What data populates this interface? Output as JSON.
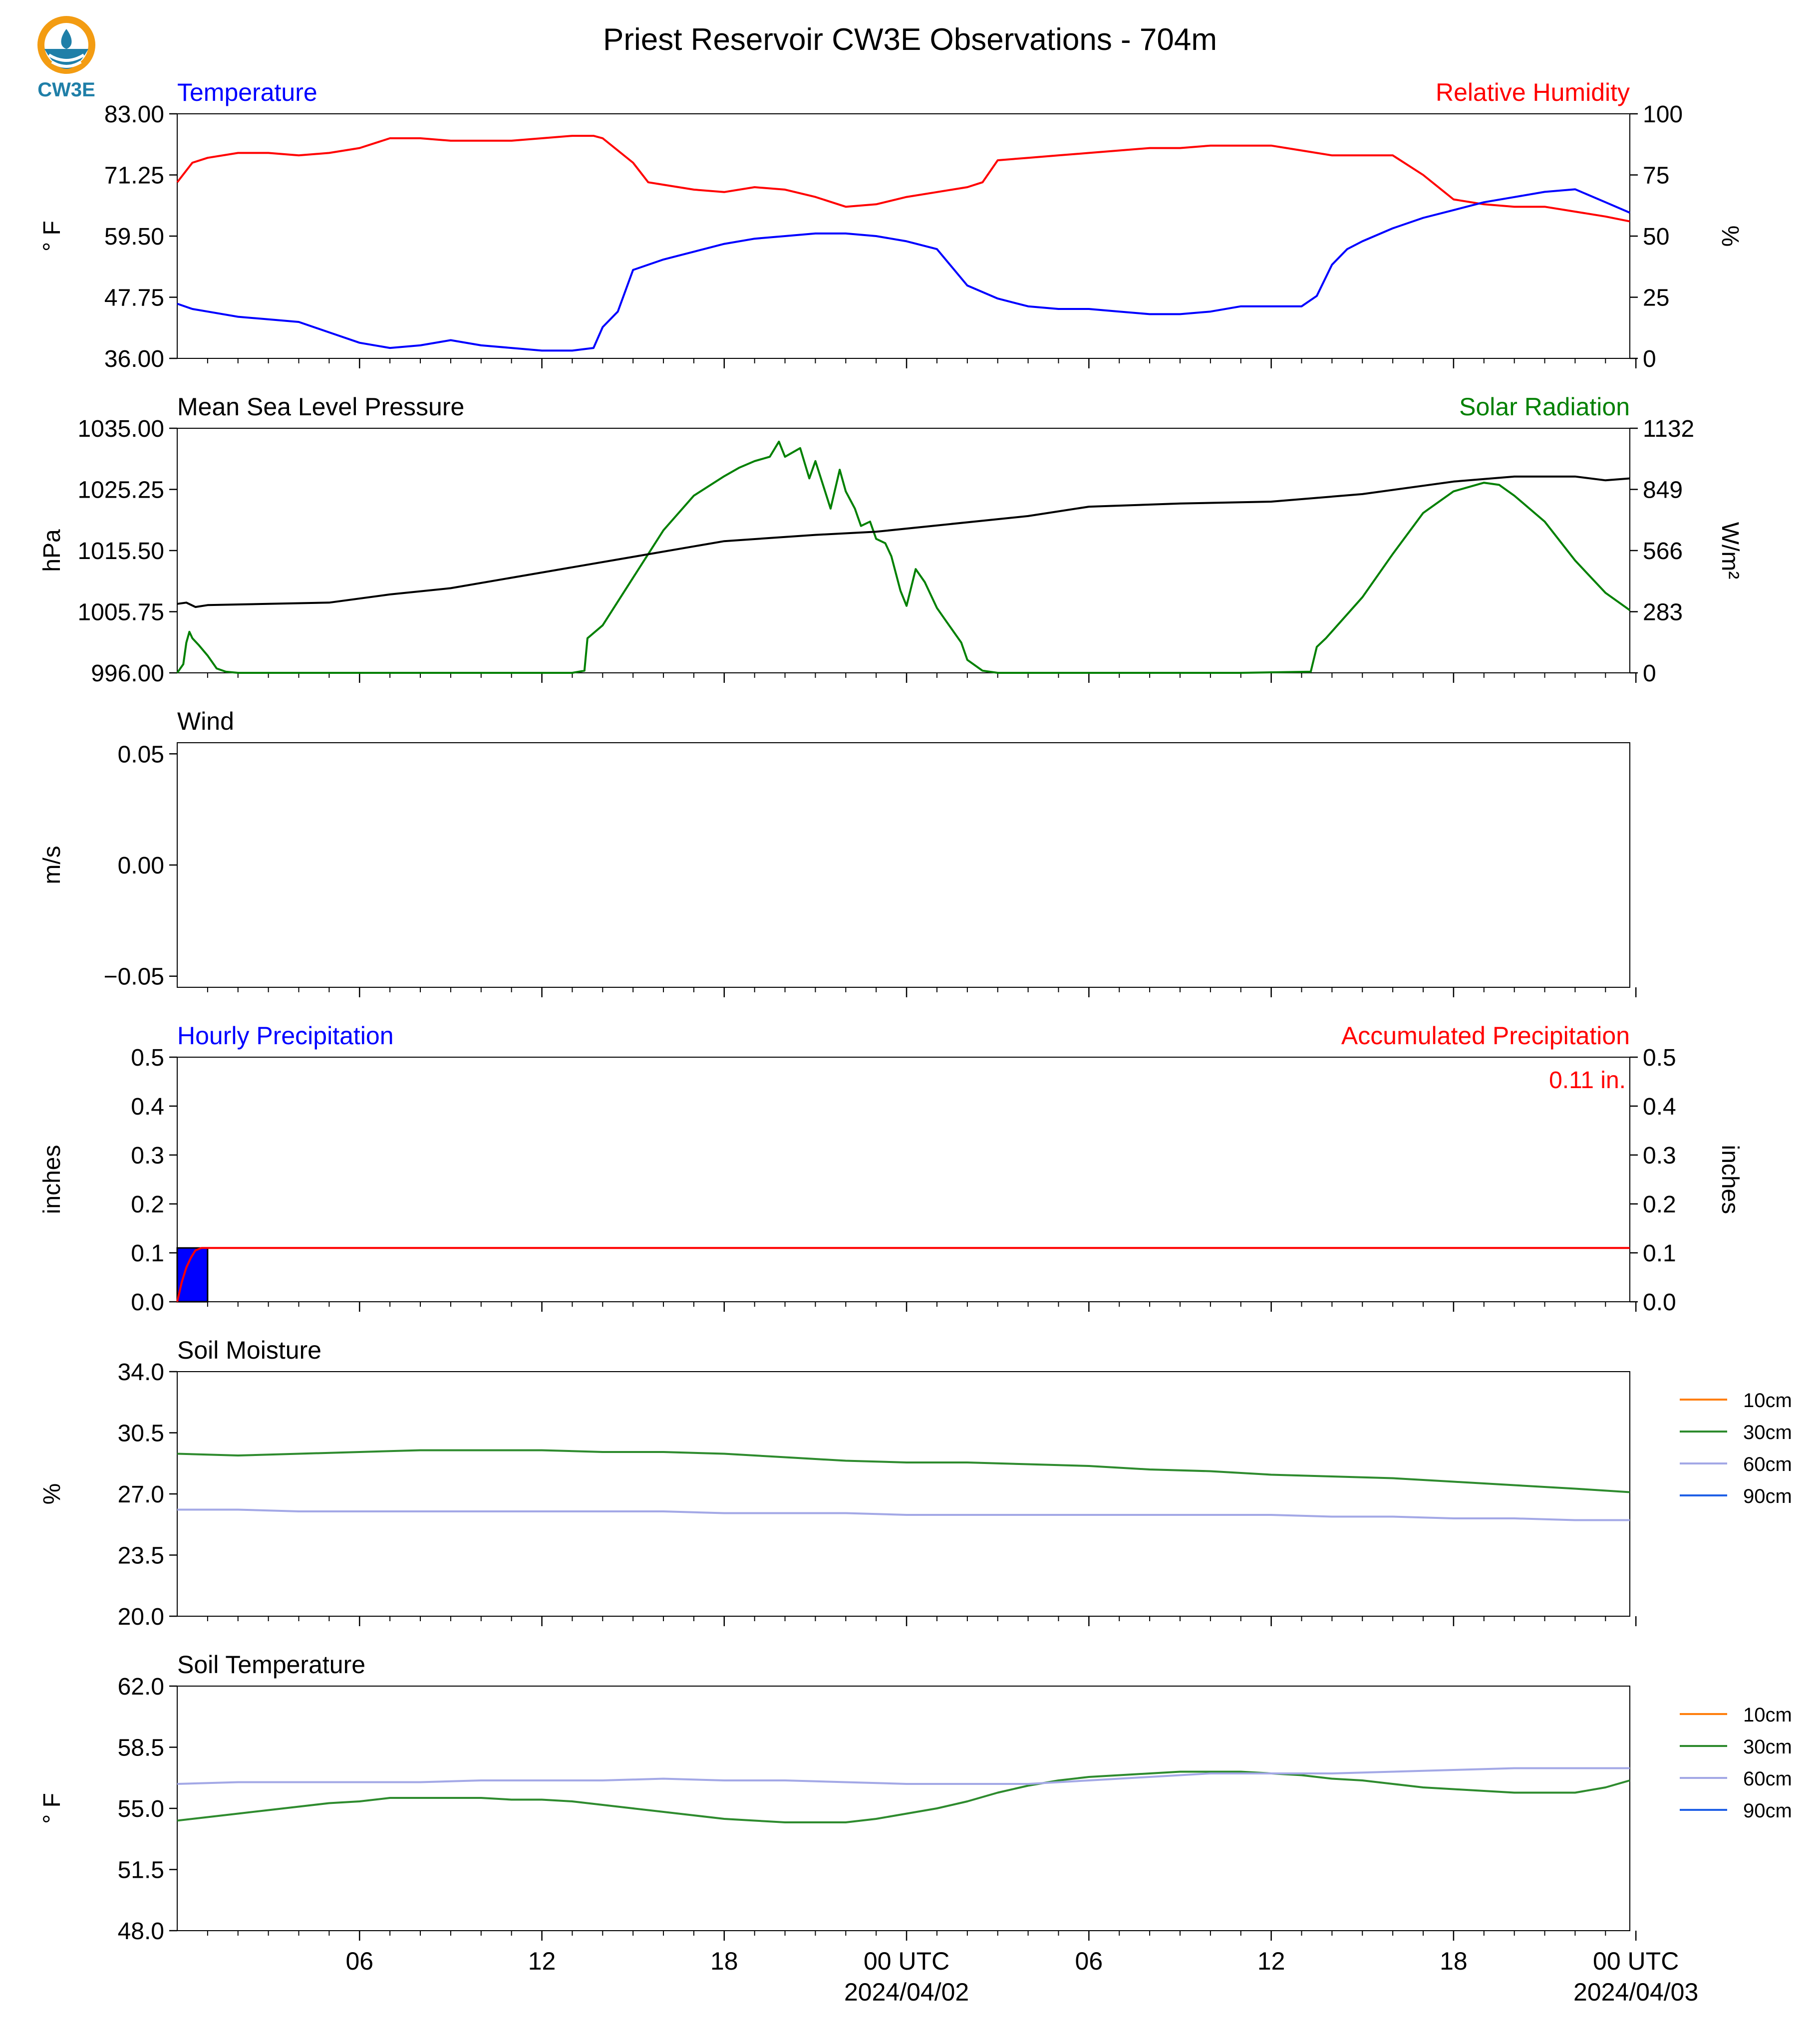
{
  "title": "Priest Reservoir CW3E Observations - 704m",
  "logo_text": "CW3E",
  "colors": {
    "temp": "#0000ff",
    "rh": "#ff0000",
    "pressure": "#000000",
    "solar": "#008000",
    "hourly": "#0000ff",
    "accum": "#ff0000",
    "10cm": "#ff7f0e",
    "30cm": "#2e8b2e",
    "60cm": "#a3a8e6",
    "90cm": "#1f5fe6"
  },
  "x_axis": {
    "unit": "hours since 2024-04-01 00 UTC",
    "range": [
      0,
      47.8
    ],
    "major_ticks": [
      6,
      12,
      18,
      24,
      30,
      36,
      42,
      48
    ],
    "tick_labels": [
      "06",
      "12",
      "18",
      "00 UTC",
      "06",
      "12",
      "18",
      "00 UTC"
    ],
    "date_labels": [
      {
        "at": 24,
        "text": "2024/04/02"
      },
      {
        "at": 48,
        "text": "2024/04/03"
      }
    ],
    "minor_ticks": [
      1,
      2,
      3,
      4,
      5,
      7,
      8,
      9,
      10,
      11,
      13,
      14,
      15,
      16,
      17,
      19,
      20,
      21,
      22,
      23,
      25,
      26,
      27,
      28,
      29,
      31,
      32,
      33,
      34,
      35,
      37,
      38,
      39,
      40,
      41,
      43,
      44,
      45,
      46,
      47
    ]
  },
  "labels": {
    "temp": "Temperature",
    "rh": "Relative Humidity",
    "temp_unit": "° F",
    "rh_unit": "%",
    "pressure": "Mean Sea Level Pressure",
    "solar": "Solar Radiation",
    "pressure_unit": "hPa",
    "solar_unit": "W/m²",
    "wind": "Wind",
    "wind_unit": "m/s",
    "hourly": "Hourly Precipitation",
    "accum": "Accumulated Precipitation",
    "precip_unit": "inches",
    "accum_total": "0.11 in.",
    "soil_moisture": "Soil Moisture",
    "sm_unit": "%",
    "soil_temp": "Soil Temperature",
    "st_unit": "° F",
    "legend": [
      "10cm",
      "30cm",
      "60cm",
      "90cm"
    ]
  },
  "chart_data": [
    {
      "type": "line",
      "title": "Temperature",
      "ylabel": "° F",
      "ylim": [
        36,
        83
      ],
      "yticks": [
        "36.00",
        "47.75",
        "59.50",
        "71.25",
        "83.00"
      ],
      "x": [
        0,
        0.5,
        1,
        2,
        3,
        4,
        5,
        6,
        7,
        8,
        9,
        10,
        11,
        12,
        13,
        13.7,
        14,
        14.5,
        15,
        16,
        17,
        18,
        19,
        20,
        21,
        22,
        23,
        24,
        25,
        26,
        27,
        28,
        29,
        30,
        31,
        32,
        33,
        34,
        35,
        36,
        37,
        37.5,
        38,
        38.5,
        39,
        40,
        41,
        42,
        43,
        44,
        45,
        46,
        47,
        47.8
      ],
      "y": [
        46.5,
        45.5,
        45,
        44,
        43.5,
        43,
        41,
        39,
        38,
        38.5,
        39.5,
        38.5,
        38,
        37.5,
        37.5,
        38,
        42,
        45,
        53,
        55,
        56.5,
        58,
        59,
        59.5,
        60,
        60,
        59.5,
        58.5,
        57,
        50,
        47.5,
        46,
        45.5,
        45.5,
        45,
        44.5,
        44.5,
        45,
        46,
        46,
        46,
        48,
        54,
        57,
        58.5,
        61,
        63,
        64.5,
        66,
        67,
        68,
        68.5,
        66,
        64
      ],
      "secondary": {
        "name": "Relative Humidity",
        "ylabel": "%",
        "ylim": [
          0,
          100
        ],
        "yticks": [
          "0",
          "25",
          "50",
          "75",
          "100"
        ],
        "x": [
          0,
          0.5,
          1,
          2,
          3,
          4,
          5,
          6,
          7,
          8,
          9,
          10,
          11,
          12,
          13,
          13.7,
          14,
          15,
          15.5,
          16,
          17,
          18,
          19,
          20,
          21,
          22,
          23,
          24,
          25,
          26,
          26.5,
          27,
          28,
          29,
          30,
          31,
          32,
          33,
          34,
          35,
          36,
          37,
          38,
          39,
          40,
          41,
          42,
          43,
          44,
          45,
          46,
          47,
          47.8
        ],
        "y": [
          72,
          80,
          82,
          84,
          84,
          83,
          84,
          86,
          90,
          90,
          89,
          89,
          89,
          90,
          91,
          91,
          90,
          80,
          72,
          71,
          69,
          68,
          70,
          69,
          66,
          62,
          63,
          66,
          68,
          70,
          72,
          81,
          82,
          83,
          84,
          85,
          86,
          86,
          87,
          87,
          87,
          85,
          83,
          83,
          83,
          75,
          65,
          63,
          62,
          62,
          60,
          58,
          56
        ]
      }
    },
    {
      "type": "line",
      "title": "Mean Sea Level Pressure",
      "ylabel": "hPa",
      "ylim": [
        996,
        1035
      ],
      "yticks": [
        "996.00",
        "1005.75",
        "1015.50",
        "1025.25",
        "1035.00"
      ],
      "x": [
        0,
        0.3,
        0.6,
        1,
        3,
        5,
        7,
        9,
        12,
        15,
        18,
        21,
        23,
        25,
        28,
        30,
        33,
        36,
        39,
        42,
        44,
        46,
        47,
        47.8
      ],
      "y": [
        1007,
        1007.2,
        1006.5,
        1006.8,
        1007,
        1007.2,
        1008.5,
        1009.5,
        1012,
        1014.5,
        1017,
        1018,
        1018.5,
        1019.5,
        1021,
        1022.5,
        1023,
        1023.3,
        1024.5,
        1026.5,
        1027.3,
        1027.3,
        1026.7,
        1027
      ],
      "secondary": {
        "name": "Solar Radiation",
        "ylabel": "W/m²",
        "ylim": [
          0,
          1132
        ],
        "yticks": [
          "0",
          "283",
          "566",
          "849",
          "1132"
        ],
        "x": [
          0,
          0.2,
          0.3,
          0.4,
          0.5,
          0.7,
          1,
          1.3,
          1.6,
          2,
          5,
          10,
          13,
          13.4,
          13.5,
          14,
          15,
          16,
          17,
          18,
          18.5,
          19,
          19.5,
          19.8,
          20,
          20.5,
          20.8,
          21,
          21.5,
          21.8,
          22,
          22.3,
          22.5,
          22.8,
          23,
          23.3,
          23.5,
          23.8,
          24,
          24.3,
          24.6,
          25,
          25.3,
          25.8,
          26,
          26.5,
          27,
          30,
          35,
          37.3,
          37.5,
          37.8,
          39,
          40,
          41,
          42,
          43,
          43.5,
          44,
          45,
          46,
          47,
          47.8
        ],
        "y": [
          0,
          40,
          140,
          190,
          160,
          130,
          80,
          20,
          5,
          0,
          0,
          0,
          0,
          10,
          160,
          220,
          440,
          660,
          820,
          910,
          950,
          980,
          1000,
          1070,
          1000,
          1040,
          900,
          980,
          760,
          940,
          840,
          760,
          680,
          700,
          620,
          600,
          540,
          380,
          310,
          480,
          420,
          300,
          240,
          140,
          60,
          10,
          0,
          0,
          0,
          5,
          120,
          160,
          350,
          550,
          740,
          840,
          880,
          870,
          820,
          700,
          520,
          370,
          290
        ]
      }
    },
    {
      "type": "line",
      "title": "Wind",
      "ylabel": "m/s",
      "ylim": [
        -0.055,
        0.055
      ],
      "yticks": [
        "−0.05",
        "0.00",
        "0.05"
      ],
      "series": []
    },
    {
      "type": "bar",
      "title": "Hourly Precipitation",
      "ylabel": "inches",
      "ylim": [
        0,
        0.5
      ],
      "yticks": [
        "0.0",
        "0.1",
        "0.2",
        "0.3",
        "0.4",
        "0.5"
      ],
      "bars": [
        {
          "x_start": 0,
          "x_end": 1,
          "value": 0.11
        }
      ],
      "secondary": {
        "name": "Accumulated Precipitation",
        "ylabel": "inches",
        "ylim": [
          0,
          0.5
        ],
        "yticks": [
          "0.0",
          "0.1",
          "0.2",
          "0.3",
          "0.4",
          "0.5"
        ],
        "x": [
          0,
          0.15,
          0.3,
          0.45,
          0.6,
          0.8,
          47.8
        ],
        "y": [
          0,
          0.04,
          0.07,
          0.09,
          0.105,
          0.11,
          0.11
        ],
        "total": "0.11 in."
      }
    },
    {
      "type": "line",
      "title": "Soil Moisture",
      "ylabel": "%",
      "ylim": [
        20,
        34
      ],
      "yticks": [
        "20.0",
        "23.5",
        "27.0",
        "30.5",
        "34.0"
      ],
      "legend": [
        "10cm",
        "30cm",
        "60cm",
        "90cm"
      ],
      "series": [
        {
          "name": "10cm",
          "x": [],
          "y": []
        },
        {
          "name": "30cm",
          "x": [
            0,
            2,
            4,
            6,
            8,
            10,
            12,
            14,
            16,
            18,
            20,
            22,
            24,
            26,
            28,
            30,
            32,
            34,
            36,
            38,
            40,
            42,
            44,
            46,
            47.8
          ],
          "y": [
            29.3,
            29.2,
            29.3,
            29.4,
            29.5,
            29.5,
            29.5,
            29.4,
            29.4,
            29.3,
            29.1,
            28.9,
            28.8,
            28.8,
            28.7,
            28.6,
            28.4,
            28.3,
            28.1,
            28.0,
            27.9,
            27.7,
            27.5,
            27.3,
            27.1
          ]
        },
        {
          "name": "60cm",
          "x": [
            0,
            2,
            4,
            6,
            8,
            10,
            12,
            14,
            16,
            18,
            20,
            22,
            24,
            26,
            28,
            30,
            32,
            34,
            36,
            38,
            40,
            42,
            44,
            46,
            47.8
          ],
          "y": [
            26.1,
            26.1,
            26.0,
            26.0,
            26.0,
            26.0,
            26.0,
            26.0,
            26.0,
            25.9,
            25.9,
            25.9,
            25.8,
            25.8,
            25.8,
            25.8,
            25.8,
            25.8,
            25.8,
            25.7,
            25.7,
            25.6,
            25.6,
            25.5,
            25.5
          ]
        },
        {
          "name": "90cm",
          "x": [],
          "y": []
        }
      ]
    },
    {
      "type": "line",
      "title": "Soil Temperature",
      "ylabel": "° F",
      "ylim": [
        48,
        62
      ],
      "yticks": [
        "48.0",
        "51.5",
        "55.0",
        "58.5",
        "62.0"
      ],
      "legend": [
        "10cm",
        "30cm",
        "60cm",
        "90cm"
      ],
      "series": [
        {
          "name": "10cm",
          "x": [],
          "y": []
        },
        {
          "name": "30cm",
          "x": [
            0,
            1,
            2,
            3,
            4,
            5,
            6,
            7,
            8,
            9,
            10,
            11,
            12,
            13,
            14,
            15,
            16,
            17,
            18,
            19,
            20,
            21,
            22,
            23,
            24,
            25,
            26,
            27,
            28,
            29,
            30,
            31,
            32,
            33,
            34,
            35,
            36,
            37,
            38,
            39,
            40,
            41,
            42,
            43,
            44,
            45,
            46,
            47,
            47.8
          ],
          "y": [
            54.3,
            54.5,
            54.7,
            54.9,
            55.1,
            55.3,
            55.4,
            55.6,
            55.6,
            55.6,
            55.6,
            55.5,
            55.5,
            55.4,
            55.2,
            55.0,
            54.8,
            54.6,
            54.4,
            54.3,
            54.2,
            54.2,
            54.2,
            54.4,
            54.7,
            55.0,
            55.4,
            55.9,
            56.3,
            56.6,
            56.8,
            56.9,
            57.0,
            57.1,
            57.1,
            57.1,
            57.0,
            56.9,
            56.7,
            56.6,
            56.4,
            56.2,
            56.1,
            56.0,
            55.9,
            55.9,
            55.9,
            56.2,
            56.6
          ]
        },
        {
          "name": "60cm",
          "x": [
            0,
            2,
            4,
            6,
            8,
            10,
            12,
            14,
            16,
            18,
            20,
            22,
            24,
            26,
            28,
            30,
            32,
            34,
            36,
            38,
            40,
            42,
            44,
            46,
            47.8
          ],
          "y": [
            56.4,
            56.5,
            56.5,
            56.5,
            56.5,
            56.6,
            56.6,
            56.6,
            56.7,
            56.6,
            56.6,
            56.5,
            56.4,
            56.4,
            56.4,
            56.6,
            56.8,
            57.0,
            57.0,
            57.0,
            57.1,
            57.2,
            57.3,
            57.3,
            57.3
          ]
        },
        {
          "name": "90cm",
          "x": [],
          "y": []
        }
      ]
    }
  ]
}
